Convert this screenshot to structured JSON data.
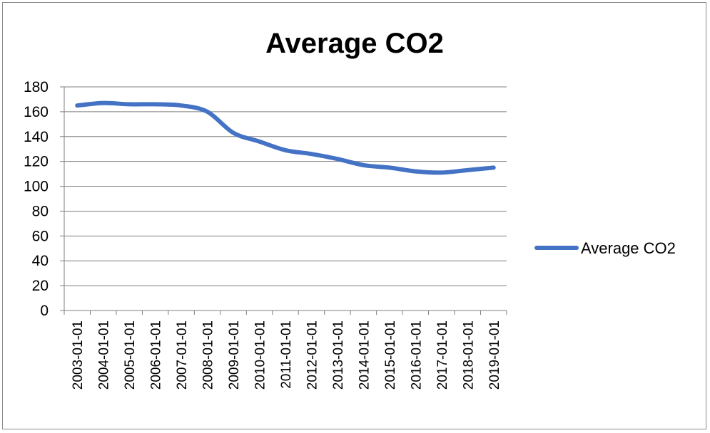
{
  "chart_data": {
    "type": "line",
    "title": "Average CO2",
    "xlabel": "",
    "ylabel": "",
    "x": [
      "2003-01-01",
      "2004-01-01",
      "2005-01-01",
      "2006-01-01",
      "2007-01-01",
      "2008-01-01",
      "2009-01-01",
      "2010-01-01",
      "2011-01-01",
      "2012-01-01",
      "2013-01-01",
      "2014-01-01",
      "2015-01-01",
      "2016-01-01",
      "2017-01-01",
      "2018-01-01",
      "2019-01-01"
    ],
    "series": [
      {
        "name": "Average CO2",
        "color": "#4472C4",
        "values": [
          165,
          167,
          166,
          166,
          165,
          160,
          143,
          136,
          129,
          126,
          122,
          117,
          115,
          112,
          111,
          113,
          115
        ]
      }
    ],
    "ylim": [
      0,
      180
    ],
    "yticks": [
      "0",
      "20",
      "40",
      "60",
      "80",
      "100",
      "120",
      "140",
      "160",
      "180"
    ],
    "grid": true,
    "legend_position": "right"
  }
}
